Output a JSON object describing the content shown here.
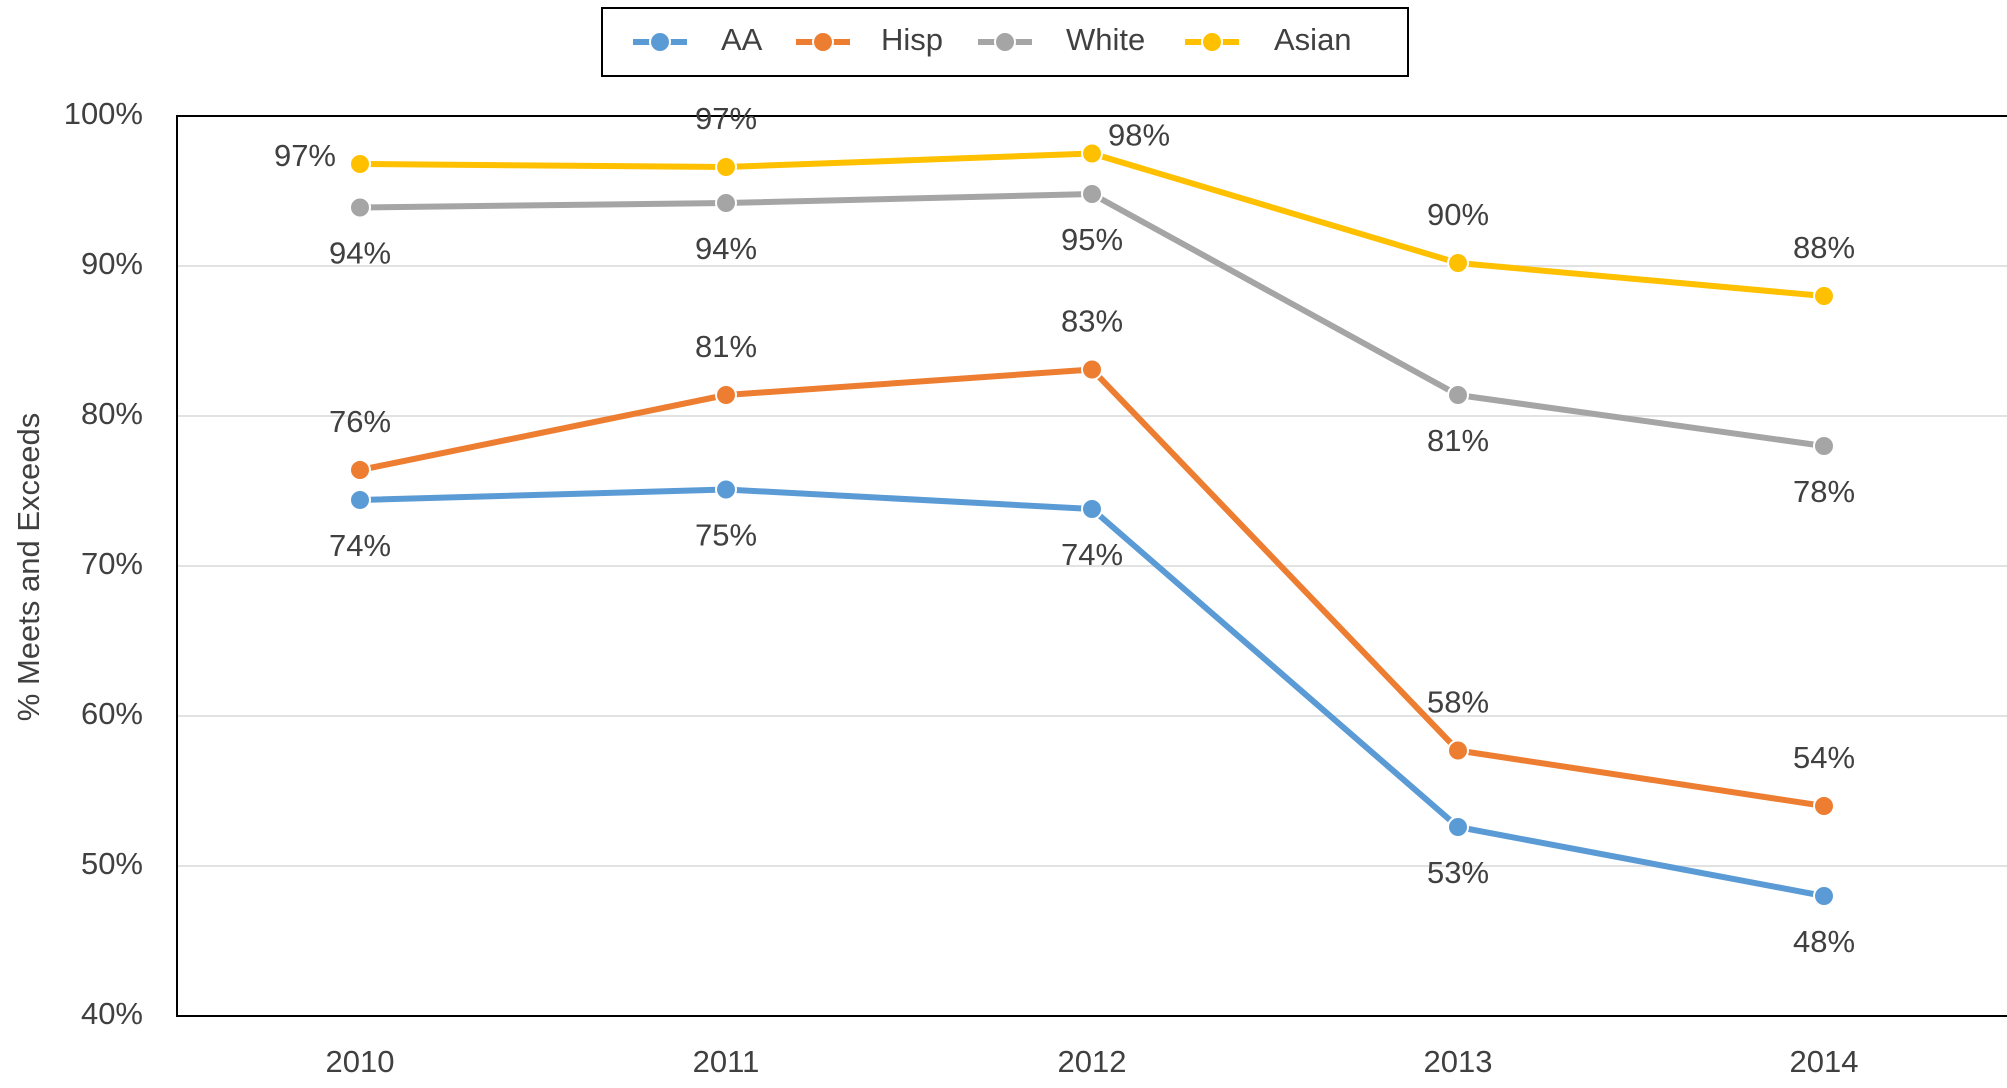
{
  "chart_data": {
    "type": "line",
    "y_axis_label": "% Meets and Exceeds",
    "categories": [
      "2010",
      "2011",
      "2012",
      "2013",
      "2014"
    ],
    "ylim": [
      40,
      100
    ],
    "yticks": [
      {
        "value": 40,
        "label": "40%"
      },
      {
        "value": 50,
        "label": "50%"
      },
      {
        "value": 60,
        "label": "60%"
      },
      {
        "value": 70,
        "label": "70%"
      },
      {
        "value": 80,
        "label": "80%"
      },
      {
        "value": 90,
        "label": "90%"
      },
      {
        "value": 100,
        "label": "100%"
      }
    ],
    "grid": true,
    "legend": "top",
    "series": [
      {
        "name": "AA",
        "color": "#5b9bd5",
        "values": [
          74.4,
          75.1,
          73.8,
          52.6,
          48.0
        ],
        "value_labels": [
          "74%",
          "75%",
          "74%",
          "53%",
          "48%"
        ]
      },
      {
        "name": "Hisp",
        "color": "#ed7d31",
        "values": [
          76.4,
          81.4,
          83.1,
          57.7,
          54.0
        ],
        "value_labels": [
          "76%",
          "81%",
          "83%",
          "58%",
          "54%"
        ]
      },
      {
        "name": "White",
        "color": "#a5a5a5",
        "values": [
          93.9,
          94.2,
          94.8,
          81.4,
          78.0
        ],
        "value_labels": [
          "94%",
          "94%",
          "95%",
          "81%",
          "78%"
        ]
      },
      {
        "name": "Asian",
        "color": "#ffc000",
        "values": [
          96.8,
          96.6,
          97.5,
          90.2,
          88.0
        ],
        "value_labels": [
          "97%",
          "97%",
          "98%",
          "90%",
          "88%"
        ]
      }
    ]
  }
}
